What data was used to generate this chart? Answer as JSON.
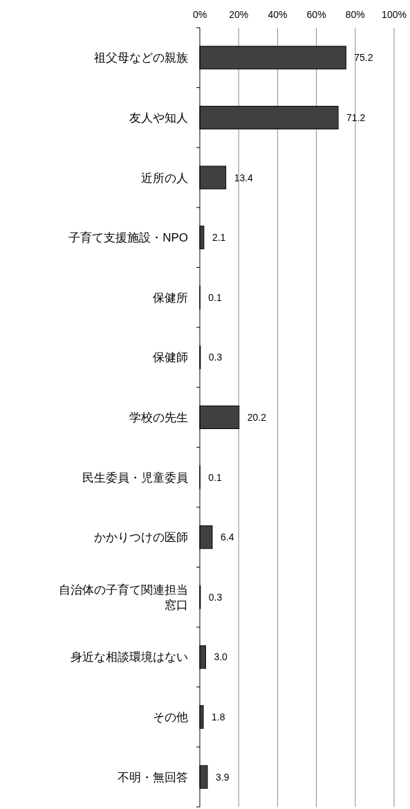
{
  "chart_data": {
    "type": "bar",
    "orientation": "horizontal",
    "categories": [
      "祖父母などの親族",
      "友人や知人",
      "近所の人",
      "子育て支援施設・NPO",
      "保健所",
      "保健師",
      "学校の先生",
      "民生委員・児童委員",
      "かかりつけの医師",
      "自治体の子育て関連担当窓口",
      "身近な相談環境はない",
      "その他",
      "不明・無回答"
    ],
    "values": [
      75.2,
      71.2,
      13.4,
      2.1,
      0.1,
      0.3,
      20.2,
      0.1,
      6.4,
      0.3,
      3.0,
      1.8,
      3.9
    ],
    "value_labels": [
      "75.2",
      "71.2",
      "13.4",
      "2.1",
      "0.1",
      "0.3",
      "20.2",
      "0.1",
      "6.4",
      "0.3",
      "3.0",
      "1.8",
      "3.9"
    ],
    "color": "#404040",
    "xlim": [
      0,
      100
    ],
    "xticks": [
      {
        "value": 0,
        "label": "0%"
      },
      {
        "value": 20,
        "label": "20%"
      },
      {
        "value": 40,
        "label": "40%"
      },
      {
        "value": 60,
        "label": "60%"
      },
      {
        "value": 80,
        "label": "80%"
      },
      {
        "value": 100,
        "label": "100%"
      }
    ],
    "grid": "x"
  }
}
